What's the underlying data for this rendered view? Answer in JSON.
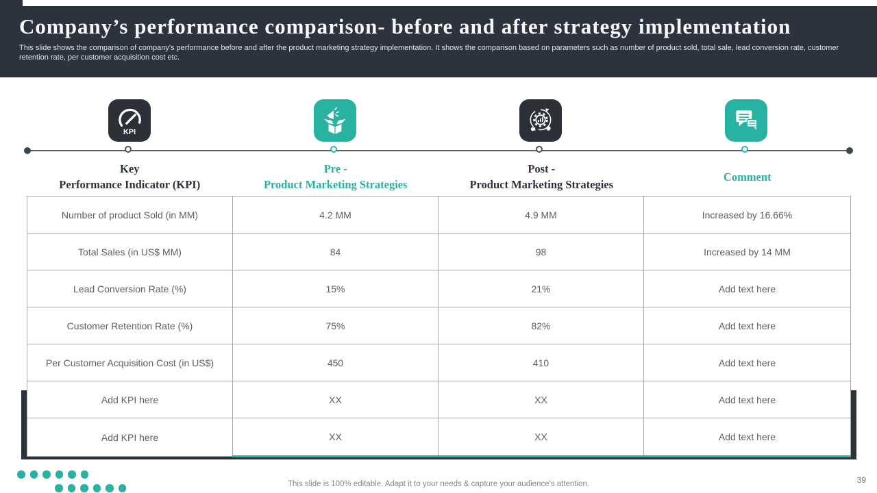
{
  "slide": {
    "title": "Company’s performance comparison- before and after strategy implementation",
    "subtitle": "This slide shows the comparison of company's performance before and after the product marketing strategy implementation. It shows the comparison based on parameters such as number of product sold, total sale, lead conversion rate, customer retention rate, per customer acquisition cost etc.",
    "footer_note": "This slide is 100% editable. Adapt it to your needs & capture your audience's attention.",
    "page_number": "39"
  },
  "colors": {
    "accent_teal": "#28b2a2",
    "header_dark": "#2d333c"
  },
  "icons": {
    "kpi_icon_label": "KPI"
  },
  "columns": [
    {
      "line1": "Key",
      "line2": "Performance Indicator (KPI)",
      "icon": "kpi-gauge-icon"
    },
    {
      "line1": "Pre -",
      "line2": "Product Marketing Strategies",
      "icon": "product-launch-icon"
    },
    {
      "line1": "Post -",
      "line2": "Product Marketing Strategies",
      "icon": "process-gear-icon"
    },
    {
      "line1": "Comment",
      "line2": "",
      "icon": "comment-bubbles-icon"
    }
  ],
  "table": {
    "rows": [
      {
        "kpi": "Number of product Sold (in MM)",
        "pre": "4.2 MM",
        "post": "4.9 MM",
        "comment": "Increased by 16.66%"
      },
      {
        "kpi": "Total Sales (in US$ MM)",
        "pre": "84",
        "post": "98",
        "comment": "Increased by 14 MM"
      },
      {
        "kpi": "Lead Conversion Rate (%)",
        "pre": "15%",
        "post": "21%",
        "comment": "Add text here"
      },
      {
        "kpi": "Customer Retention Rate (%)",
        "pre": "75%",
        "post": "82%",
        "comment": "Add text here"
      },
      {
        "kpi": "Per Customer Acquisition Cost (in US$)",
        "pre": "450",
        "post": "410",
        "comment": "Add text here"
      },
      {
        "kpi": "Add KPI here",
        "pre": "XX",
        "post": "XX",
        "comment": "Add text here"
      },
      {
        "kpi": "Add KPI here",
        "pre": "XX",
        "post": "XX",
        "comment": "Add text here"
      }
    ]
  }
}
